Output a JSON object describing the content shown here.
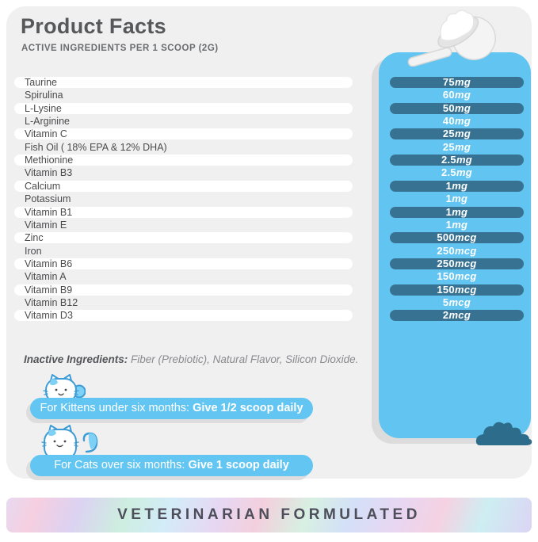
{
  "header": {
    "title": "Product Facts",
    "subtitle": "ACTIVE INGREDIENTS PER 1 SCOOP (2G)"
  },
  "ingredients": [
    {
      "name": "Taurine",
      "amount": "75",
      "unit": "mg"
    },
    {
      "name": "Spirulina",
      "amount": "60",
      "unit": "mg"
    },
    {
      "name": "L-Lysine",
      "amount": "50",
      "unit": "mg"
    },
    {
      "name": "L-Arginine",
      "amount": "40",
      "unit": "mg"
    },
    {
      "name": "Vitamin C",
      "amount": "25",
      "unit": "mg"
    },
    {
      "name": "Fish Oil ( 18% EPA & 12% DHA)",
      "amount": "25",
      "unit": "mg"
    },
    {
      "name": "Methionine",
      "amount": "2.5",
      "unit": "mg"
    },
    {
      "name": "Vitamin B3",
      "amount": "2.5",
      "unit": "mg"
    },
    {
      "name": "Calcium",
      "amount": "1",
      "unit": "mg"
    },
    {
      "name": "Potassium",
      "amount": "1",
      "unit": "mg"
    },
    {
      "name": "Vitamin B1",
      "amount": "1",
      "unit": "mg"
    },
    {
      "name": "Vitamin E",
      "amount": "1",
      "unit": "mg"
    },
    {
      "name": "Zinc",
      "amount": "500",
      "unit": "mcg"
    },
    {
      "name": "Iron",
      "amount": "250",
      "unit": "mcg"
    },
    {
      "name": "Vitamin B6",
      "amount": "250",
      "unit": "mcg"
    },
    {
      "name": "Vitamin A",
      "amount": "150",
      "unit": "mcg"
    },
    {
      "name": "Vitamin B9",
      "amount": "150",
      "unit": "mcg"
    },
    {
      "name": "Vitamin B12",
      "amount": "5",
      "unit": "mcg"
    },
    {
      "name": "Vitamin D3",
      "amount": "2",
      "unit": "mcg"
    }
  ],
  "inactive": {
    "label": "Inactive Ingredients:",
    "text": " Fiber (Prebiotic), Natural Flavor, Silicon Dioxide."
  },
  "instructions": [
    {
      "label": "For Kittens under six months:  ",
      "bold": "Give 1/2 scoop daily"
    },
    {
      "label": "For Cats over six months:  ",
      "bold": "Give 1 scoop daily"
    }
  ],
  "banner": {
    "text": "VETERINARIAN FORMULATED"
  },
  "icons": {
    "scoop": "scoop-icon",
    "kitten": "kitten-icon",
    "cat": "cat-icon",
    "bush": "bush-icon"
  },
  "colors": {
    "panel_blue": "#62c5f1",
    "amount_pill_dark": "#387293",
    "bush_teal": "#2e6c8c",
    "card_bg": "#f0f0f1",
    "ingredient_pill": "#ffffff",
    "banner_text": "#4e4e5b"
  }
}
